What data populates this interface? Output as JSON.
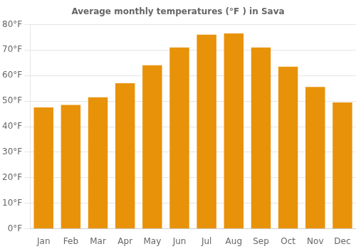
{
  "chart_data": {
    "type": "bar",
    "title": "Average monthly temperatures (°F ) in Sava",
    "categories": [
      "Jan",
      "Feb",
      "Mar",
      "Apr",
      "May",
      "Jun",
      "Jul",
      "Aug",
      "Sep",
      "Oct",
      "Nov",
      "Dec"
    ],
    "values": [
      47.5,
      48.5,
      51.5,
      57.0,
      64.0,
      71.0,
      76.0,
      76.5,
      71.0,
      63.5,
      55.5,
      49.5
    ],
    "color": "#E8920A",
    "ylim": [
      0,
      80
    ],
    "yticks": [
      {
        "value": 0,
        "label": "0°F"
      },
      {
        "value": 10,
        "label": "10°F"
      },
      {
        "value": 20,
        "label": "20°F"
      },
      {
        "value": 30,
        "label": "30°F"
      },
      {
        "value": 40,
        "label": "40°F"
      },
      {
        "value": 50,
        "label": "50°F"
      },
      {
        "value": 60,
        "label": "60°F"
      },
      {
        "value": 70,
        "label": "70°F"
      },
      {
        "value": 80,
        "label": "80°F"
      }
    ],
    "grid": true
  }
}
